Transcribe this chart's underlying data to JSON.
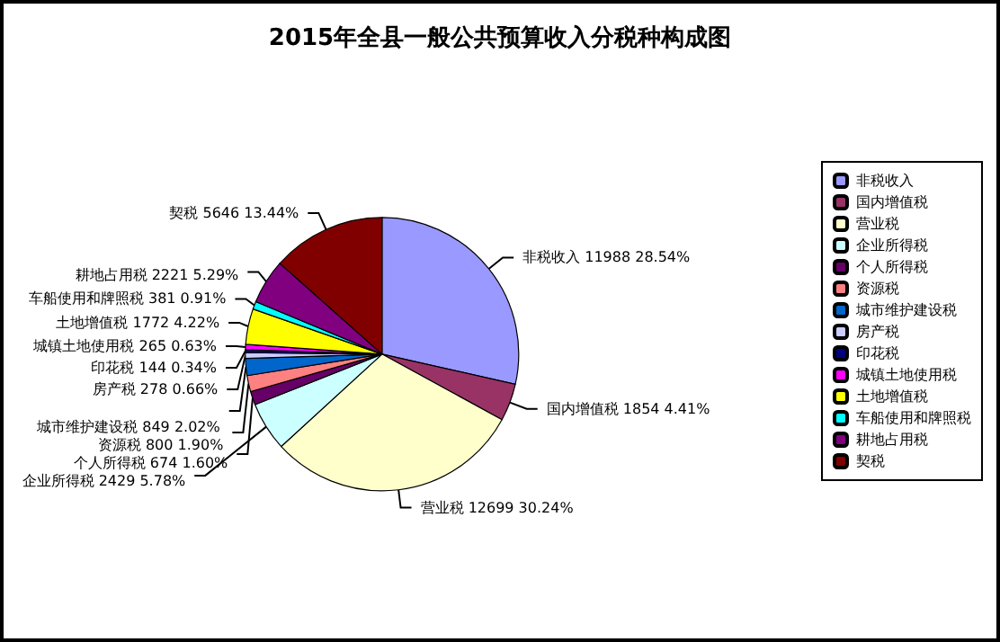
{
  "chart_data": {
    "type": "pie",
    "title": "2015年全县一般公共预算收入分税种构成图",
    "categories": [
      "非税收入",
      "国内增值税",
      "营业税",
      "企业所得税",
      "个人所得税",
      "资源税",
      "城市维护建设税",
      "房产税",
      "印花税",
      "城镇土地使用税",
      "土地增值税",
      "车船使用和牌照税",
      "耕地占用税",
      "契税"
    ],
    "values": [
      11988,
      1854,
      12699,
      2429,
      674,
      800,
      849,
      278,
      144,
      265,
      1772,
      381,
      2221,
      5646
    ],
    "colors": [
      "#9999ff",
      "#993366",
      "#ffffcc",
      "#ccffff",
      "#660066",
      "#ff8080",
      "#0066cc",
      "#ccccff",
      "#000080",
      "#ff00ff",
      "#ffff00",
      "#00ffff",
      "#800080",
      "#800000"
    ],
    "value_labels": [
      "非税收入 11988 28.54%",
      "国内增值税 1854 4.41%",
      "营业税 12699 30.24%",
      "企业所得税 2429 5.78%",
      "个人所得税 674 1.60%",
      "资源税 800 1.90%",
      "城市维护建设税 849 2.02%",
      "房产税 278 0.66%",
      "印花税 144 0.34%",
      "城镇土地使用税 265 0.63%",
      "土地增值税 1772 4.22%",
      "车船使用和牌照税 381 0.91%",
      "耕地占用税 2221 5.29%",
      "契税 5646 13.44%"
    ],
    "legend": "right"
  }
}
